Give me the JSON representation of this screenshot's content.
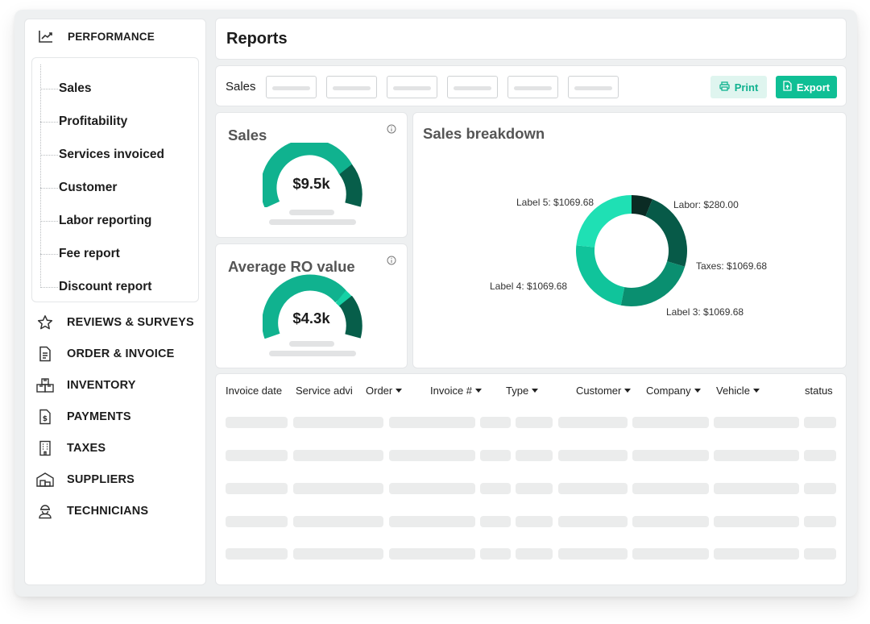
{
  "sidebar": {
    "header": {
      "label": "PERFORMANCE",
      "icon": "trending-chart-icon"
    },
    "sub_items": [
      {
        "label": "Sales"
      },
      {
        "label": "Profitability"
      },
      {
        "label": "Services invoiced"
      },
      {
        "label": "Customer"
      },
      {
        "label": "Labor reporting"
      },
      {
        "label": "Fee report"
      },
      {
        "label": "Discount report"
      }
    ],
    "items": [
      {
        "label": "REVIEWS & SURVEYS",
        "icon": "star-icon"
      },
      {
        "label": "ORDER & INVOICE",
        "icon": "document-icon"
      },
      {
        "label": "INVENTORY",
        "icon": "boxes-icon"
      },
      {
        "label": "PAYMENTS",
        "icon": "dollar-document-icon"
      },
      {
        "label": "TAXES",
        "icon": "building-icon"
      },
      {
        "label": "SUPPLIERS",
        "icon": "warehouse-icon"
      },
      {
        "label": "TECHNICIANS",
        "icon": "technician-icon"
      }
    ]
  },
  "header": {
    "title": "Reports"
  },
  "filters": {
    "label": "Sales",
    "print_label": "Print",
    "export_label": "Export"
  },
  "kpis": {
    "sales": {
      "title": "Sales",
      "value": "$9.5k"
    },
    "avg_ro": {
      "title": "Average RO value",
      "value": "$4.3k"
    }
  },
  "breakdown": {
    "title": "Sales breakdown",
    "labels": {
      "labor": "Labor: $280.00",
      "taxes": "Taxes: $1069.68",
      "label3": "Label 3: $1069.68",
      "label4": "Label 4: $1069.68",
      "label5": "Label 5: $1069.68"
    }
  },
  "chart_data": {
    "type": "pie",
    "title": "Sales breakdown",
    "categories": [
      "Labor",
      "Taxes",
      "Label 3",
      "Label 4",
      "Label 5"
    ],
    "values": [
      280.0,
      1069.68,
      1069.68,
      1069.68,
      1069.68
    ],
    "colors": [
      "#0b2b24",
      "#075a48",
      "#0a8f70",
      "#10c49b",
      "#1fe0b4"
    ]
  },
  "table": {
    "columns": [
      {
        "label": "Invoice date",
        "sortable": false
      },
      {
        "label": "Service advi",
        "sortable": false
      },
      {
        "label": "Order",
        "sortable": true
      },
      {
        "label": "Invoice #",
        "sortable": true
      },
      {
        "label": "Type",
        "sortable": true
      },
      {
        "label": "Customer",
        "sortable": true
      },
      {
        "label": "Company",
        "sortable": true
      },
      {
        "label": "Vehicle",
        "sortable": true
      },
      {
        "label": "status",
        "sortable": false
      }
    ]
  },
  "colors": {
    "accent": "#0fbf95",
    "accent_light": "#dff5ef",
    "gauge_main": "#10b28f",
    "gauge_light": "#16d1a5",
    "gauge_dark": "#075e4a"
  }
}
